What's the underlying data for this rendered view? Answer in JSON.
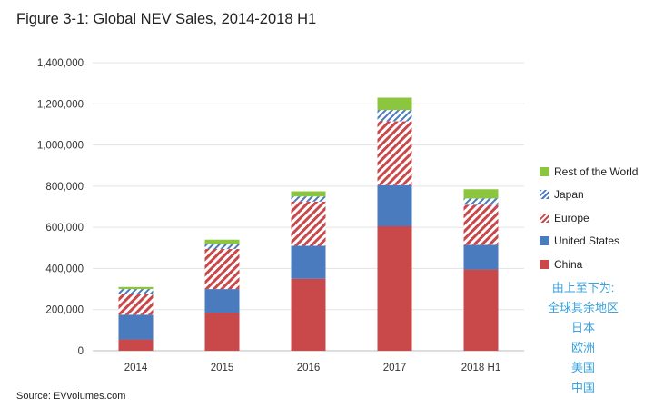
{
  "title": "Figure 3-1: Global NEV Sales, 2014-2018 H1",
  "source": "Source: EVvolumes.com",
  "annotation_lines": [
    "由上至下为:",
    "全球其余地区",
    "日本",
    "欧洲",
    "美国",
    "中国"
  ],
  "colors": {
    "china": "#c9484a",
    "united_states": "#4a7bbf",
    "europe": "#c9484a",
    "japan": "#4a7bbf",
    "rest_of_world": "#8cc63f",
    "annotation": "#3aa3dd"
  },
  "legend": [
    {
      "label": "Rest of the World",
      "pattern": "solid",
      "color": "#8cc63f"
    },
    {
      "label": "Japan",
      "pattern": "hatch",
      "color": "#4a7bbf"
    },
    {
      "label": "Europe",
      "pattern": "hatch",
      "color": "#c9484a"
    },
    {
      "label": "United States",
      "pattern": "solid",
      "color": "#4a7bbf"
    },
    {
      "label": "China",
      "pattern": "solid",
      "color": "#c9484a"
    }
  ],
  "chart_data": {
    "type": "bar",
    "stacked": true,
    "categories": [
      "2014",
      "2015",
      "2016",
      "2017",
      "2018 H1"
    ],
    "ylim": [
      0,
      1400000
    ],
    "yticks": [
      "0",
      "200,000",
      "400,000",
      "600,000",
      "800,000",
      "1,000,000",
      "1,200,000",
      "1,400,000"
    ],
    "grid": true,
    "legend_position": "right",
    "series": [
      {
        "name": "China",
        "values": [
          55000,
          185000,
          350000,
          605000,
          395000
        ]
      },
      {
        "name": "United States",
        "values": [
          120000,
          115000,
          160000,
          200000,
          120000
        ]
      },
      {
        "name": "Europe",
        "values": [
          100000,
          195000,
          215000,
          310000,
          195000
        ]
      },
      {
        "name": "Japan",
        "values": [
          25000,
          25000,
          25000,
          55000,
          30000
        ]
      },
      {
        "name": "Rest of the World",
        "values": [
          10000,
          20000,
          25000,
          60000,
          45000
        ]
      }
    ]
  }
}
